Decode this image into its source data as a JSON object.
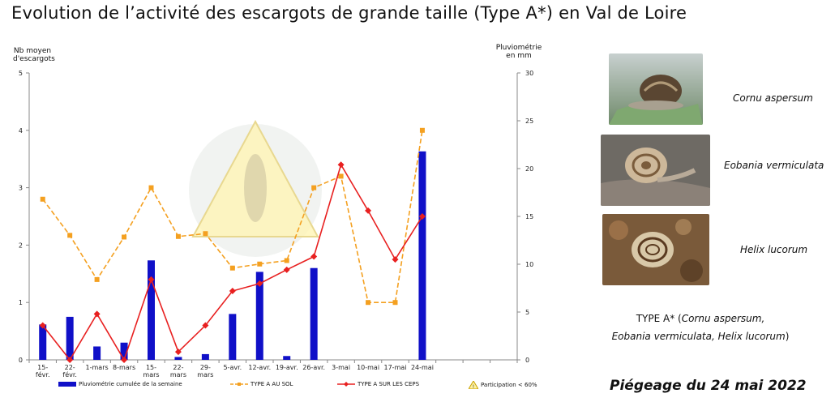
{
  "title": "Evolution de l’activité des escargots de grande taille (Type A*) en Val de Loire",
  "chart_data": {
    "type": "bar",
    "categories": [
      "15-\nfévr.",
      "22-\nfévr.",
      "1-mars",
      "8-mars",
      "15-\nmars",
      "22-\nmars",
      "29-\nmars",
      "5-avr.",
      "12-avr.",
      "19-avr.",
      "26-avr.",
      "3-mai",
      "10-mai",
      "17-mai",
      "24-mai"
    ],
    "ylabel": "Nb moyen\nd'escargots",
    "y2label": "Pluviométrie\nen mm",
    "ylim": [
      0,
      5
    ],
    "y2lim": [
      0,
      30
    ],
    "yticks": [
      0,
      1,
      2,
      3,
      4,
      5
    ],
    "y2ticks": [
      0,
      5,
      10,
      15,
      20,
      25,
      30
    ],
    "series": [
      {
        "name": "Pluviométrie cumulée de la semaine",
        "type": "bar",
        "axis": "right",
        "color": "#1010c8",
        "values": [
          3.7,
          4.5,
          1.4,
          1.8,
          10.4,
          0.3,
          0.6,
          4.8,
          9.2,
          0.4,
          9.6,
          null,
          null,
          null,
          21.8
        ]
      },
      {
        "name": "TYPE A AU SOL",
        "type": "line",
        "dashed": true,
        "axis": "left",
        "color": "#f4a020",
        "values": [
          2.8,
          2.17,
          1.4,
          2.14,
          3.0,
          2.15,
          2.2,
          1.6,
          1.67,
          1.73,
          3.0,
          3.2,
          1.0,
          1.0,
          4.0
        ]
      },
      {
        "name": "TYPE A SUR LES CEPS",
        "type": "line",
        "axis": "left",
        "color": "#e82020",
        "values": [
          0.6,
          0.0,
          0.8,
          0.0,
          1.4,
          0.14,
          0.6,
          1.2,
          1.33,
          1.57,
          1.8,
          3.4,
          2.6,
          1.75,
          2.5
        ]
      }
    ],
    "legend_extra": "Participation < 60%"
  },
  "photos": [
    {
      "species": "Cornu aspersum"
    },
    {
      "species": "Eobania vermiculata"
    },
    {
      "species": "Helix lucorum"
    }
  ],
  "type_note": {
    "prefix": "TYPE A* (",
    "line1": "Cornu aspersum,",
    "line2": "Eobania vermiculata, Helix lucorum",
    "suffix": ")"
  },
  "trap_label": "Piégeage du 24 mai 2022",
  "colors": {
    "bars": "#1010c8",
    "ground": "#f4a020",
    "vines": "#e82020"
  }
}
